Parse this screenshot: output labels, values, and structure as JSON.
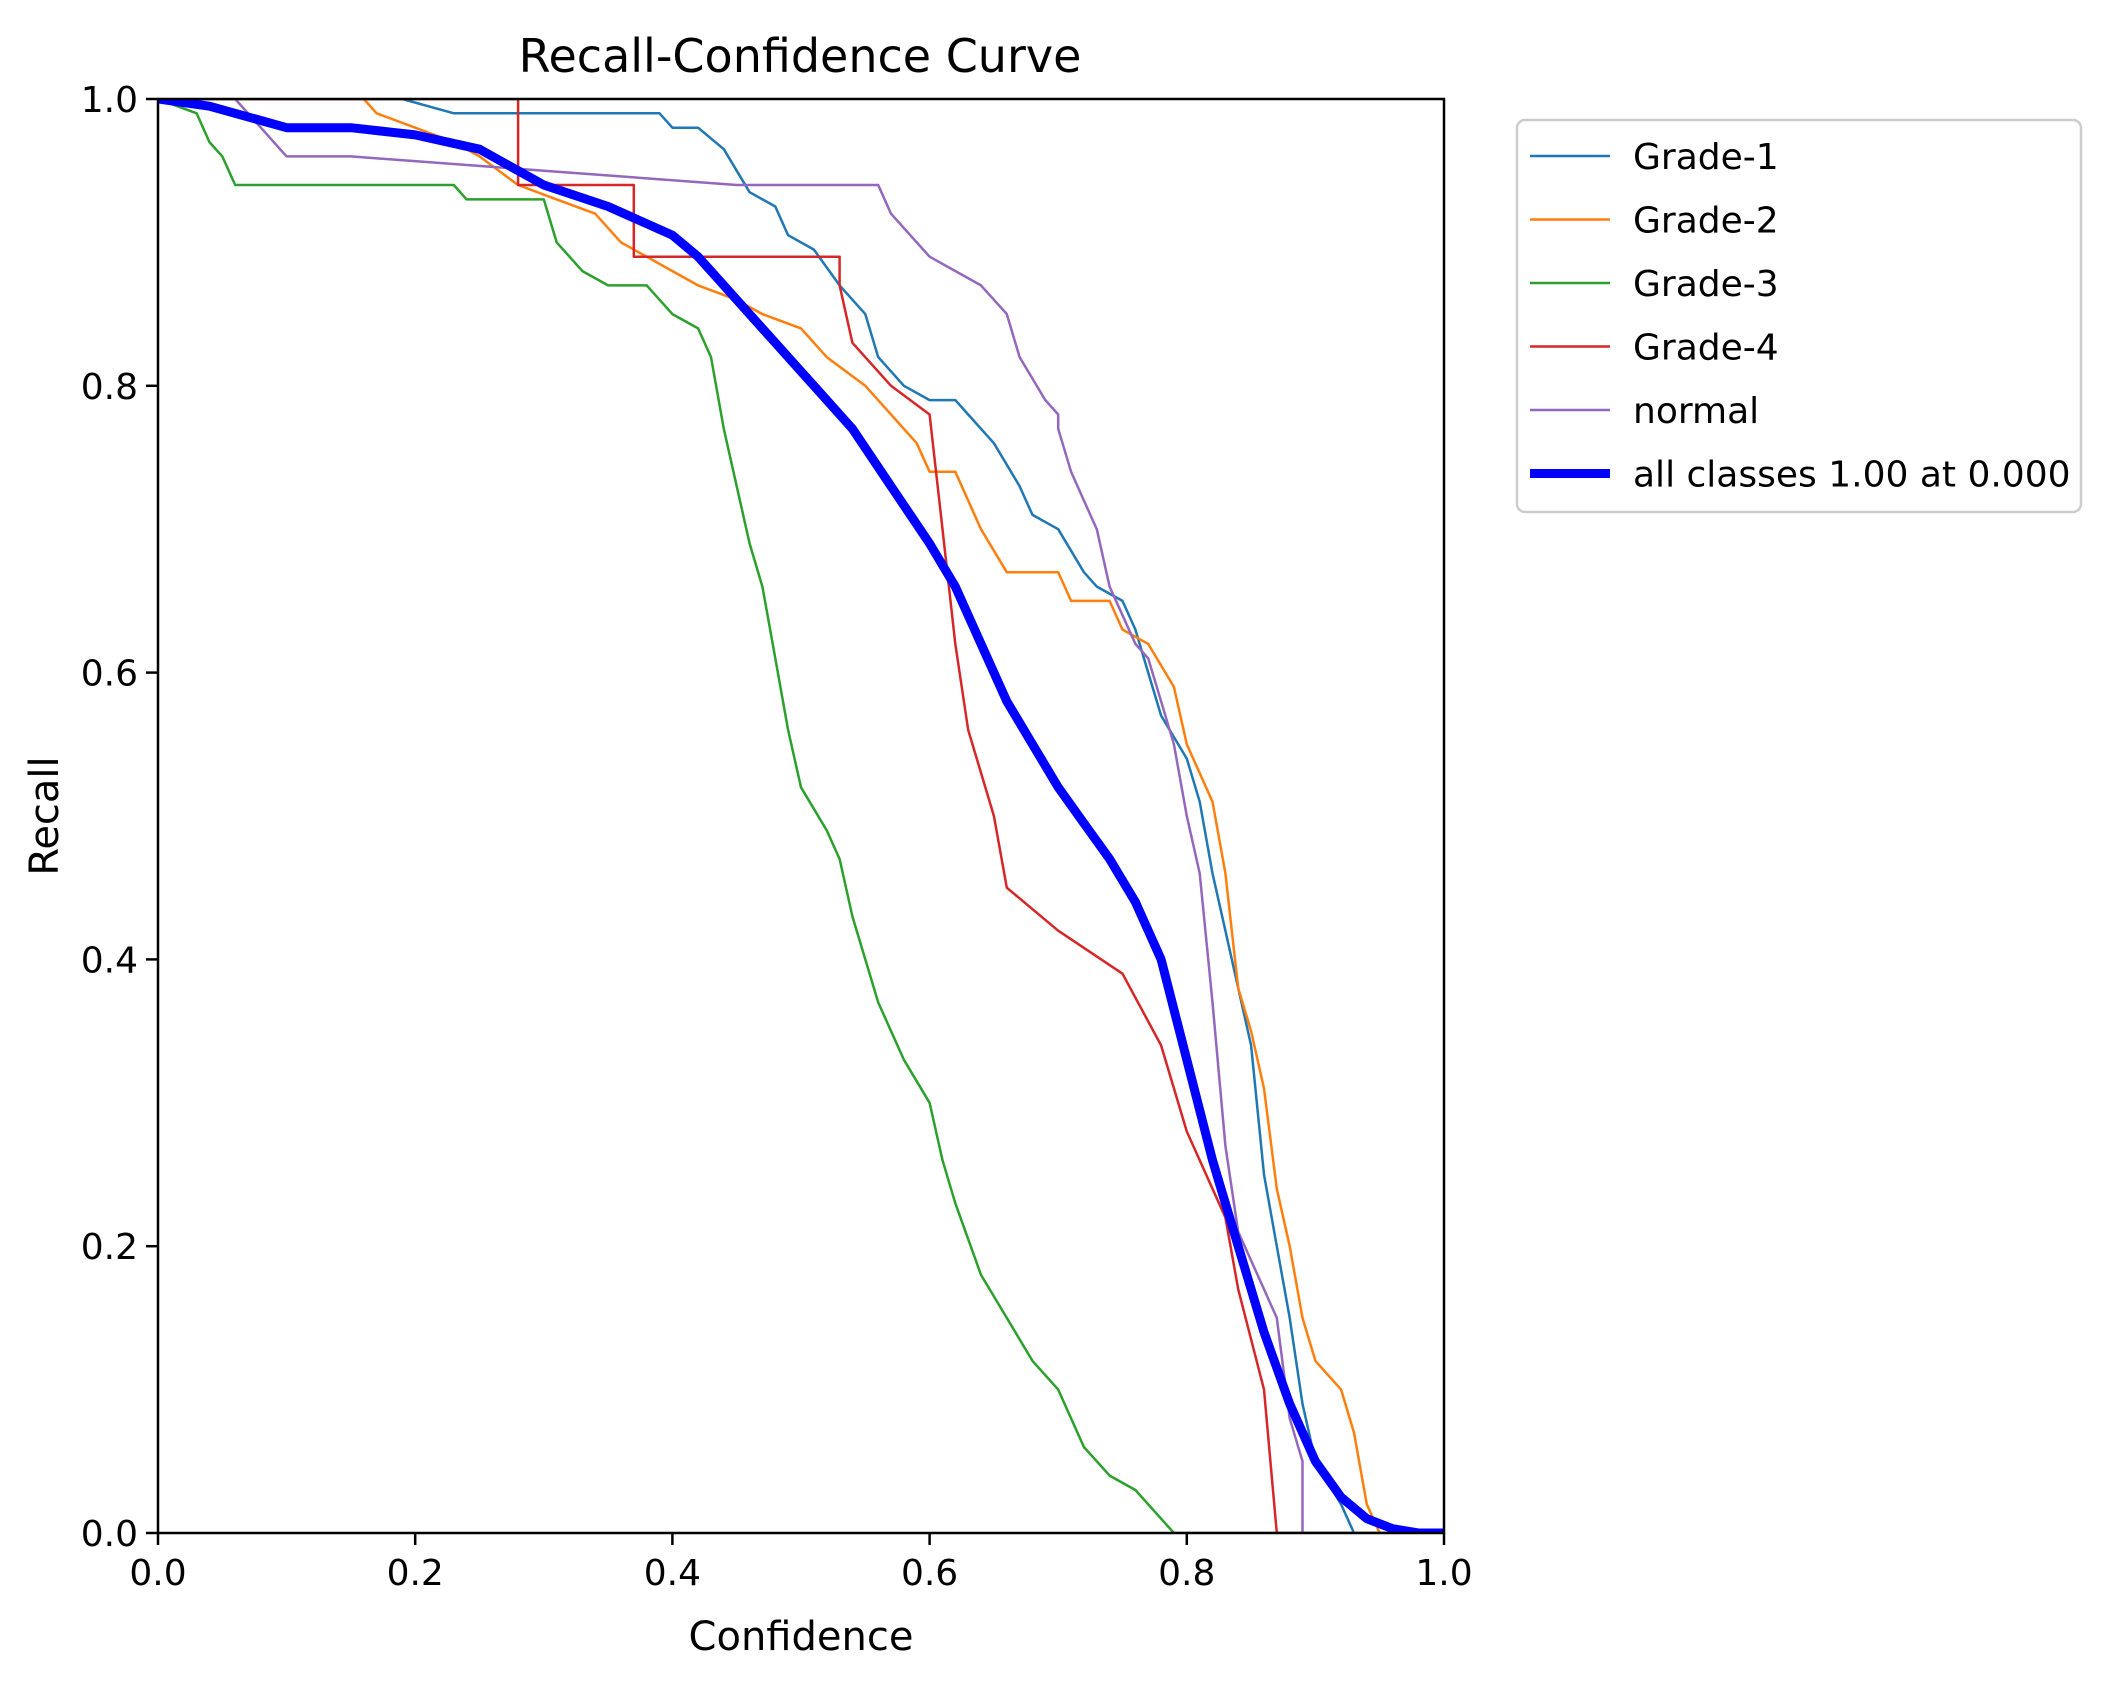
{
  "chart_data": {
    "type": "line",
    "title": "Recall-Confidence Curve",
    "xlabel": "Confidence",
    "ylabel": "Recall",
    "xlim": [
      0.0,
      1.0
    ],
    "ylim": [
      0.0,
      1.0
    ],
    "grid": false,
    "legend_position": "outside-top-right",
    "x_ticks": [
      0.0,
      0.2,
      0.4,
      0.6,
      0.8,
      1.0
    ],
    "y_ticks": [
      0.0,
      0.2,
      0.4,
      0.6,
      0.8,
      1.0
    ],
    "x_tick_labels": [
      "0.0",
      "0.2",
      "0.4",
      "0.6",
      "0.8",
      "1.0"
    ],
    "y_tick_labels": [
      "0.0",
      "0.2",
      "0.4",
      "0.6",
      "0.8",
      "1.0"
    ],
    "series": [
      {
        "name": "Grade-1",
        "color": "#1f77b4",
        "emphasis": false,
        "points": [
          [
            0.0,
            1.0
          ],
          [
            0.19,
            1.0
          ],
          [
            0.23,
            0.99
          ],
          [
            0.33,
            0.99
          ],
          [
            0.39,
            0.99
          ],
          [
            0.4,
            0.98
          ],
          [
            0.42,
            0.98
          ],
          [
            0.44,
            0.965
          ],
          [
            0.46,
            0.935
          ],
          [
            0.48,
            0.925
          ],
          [
            0.49,
            0.905
          ],
          [
            0.51,
            0.895
          ],
          [
            0.53,
            0.87
          ],
          [
            0.55,
            0.85
          ],
          [
            0.56,
            0.82
          ],
          [
            0.58,
            0.8
          ],
          [
            0.6,
            0.79
          ],
          [
            0.62,
            0.79
          ],
          [
            0.63,
            0.78
          ],
          [
            0.65,
            0.76
          ],
          [
            0.67,
            0.73
          ],
          [
            0.68,
            0.71
          ],
          [
            0.7,
            0.7
          ],
          [
            0.72,
            0.67
          ],
          [
            0.73,
            0.66
          ],
          [
            0.75,
            0.65
          ],
          [
            0.76,
            0.63
          ],
          [
            0.77,
            0.6
          ],
          [
            0.78,
            0.57
          ],
          [
            0.8,
            0.54
          ],
          [
            0.81,
            0.51
          ],
          [
            0.82,
            0.46
          ],
          [
            0.83,
            0.42
          ],
          [
            0.84,
            0.38
          ],
          [
            0.85,
            0.34
          ],
          [
            0.86,
            0.25
          ],
          [
            0.87,
            0.2
          ],
          [
            0.88,
            0.15
          ],
          [
            0.89,
            0.09
          ],
          [
            0.9,
            0.05
          ],
          [
            0.92,
            0.02
          ],
          [
            0.93,
            0.0
          ],
          [
            1.0,
            0.0
          ]
        ]
      },
      {
        "name": "Grade-2",
        "color": "#ff7f0e",
        "emphasis": false,
        "points": [
          [
            0.0,
            1.0
          ],
          [
            0.16,
            1.0
          ],
          [
            0.17,
            0.99
          ],
          [
            0.2,
            0.98
          ],
          [
            0.23,
            0.97
          ],
          [
            0.25,
            0.96
          ],
          [
            0.28,
            0.94
          ],
          [
            0.31,
            0.93
          ],
          [
            0.34,
            0.92
          ],
          [
            0.36,
            0.9
          ],
          [
            0.38,
            0.89
          ],
          [
            0.4,
            0.88
          ],
          [
            0.42,
            0.87
          ],
          [
            0.45,
            0.86
          ],
          [
            0.47,
            0.85
          ],
          [
            0.5,
            0.84
          ],
          [
            0.52,
            0.82
          ],
          [
            0.55,
            0.8
          ],
          [
            0.57,
            0.78
          ],
          [
            0.59,
            0.76
          ],
          [
            0.6,
            0.74
          ],
          [
            0.62,
            0.74
          ],
          [
            0.64,
            0.7
          ],
          [
            0.66,
            0.67
          ],
          [
            0.7,
            0.67
          ],
          [
            0.71,
            0.65
          ],
          [
            0.74,
            0.65
          ],
          [
            0.75,
            0.63
          ],
          [
            0.77,
            0.62
          ],
          [
            0.79,
            0.59
          ],
          [
            0.8,
            0.55
          ],
          [
            0.82,
            0.51
          ],
          [
            0.83,
            0.46
          ],
          [
            0.84,
            0.38
          ],
          [
            0.85,
            0.35
          ],
          [
            0.86,
            0.31
          ],
          [
            0.87,
            0.24
          ],
          [
            0.88,
            0.2
          ],
          [
            0.89,
            0.15
          ],
          [
            0.9,
            0.12
          ],
          [
            0.92,
            0.1
          ],
          [
            0.93,
            0.07
          ],
          [
            0.94,
            0.02
          ],
          [
            0.95,
            0.0
          ],
          [
            1.0,
            0.0
          ]
        ]
      },
      {
        "name": "Grade-3",
        "color": "#2ca02c",
        "emphasis": false,
        "points": [
          [
            0.0,
            1.0
          ],
          [
            0.03,
            0.99
          ],
          [
            0.04,
            0.97
          ],
          [
            0.05,
            0.96
          ],
          [
            0.06,
            0.94
          ],
          [
            0.1,
            0.94
          ],
          [
            0.23,
            0.94
          ],
          [
            0.24,
            0.93
          ],
          [
            0.3,
            0.93
          ],
          [
            0.31,
            0.9
          ],
          [
            0.33,
            0.88
          ],
          [
            0.35,
            0.87
          ],
          [
            0.38,
            0.87
          ],
          [
            0.4,
            0.85
          ],
          [
            0.42,
            0.84
          ],
          [
            0.43,
            0.82
          ],
          [
            0.44,
            0.77
          ],
          [
            0.45,
            0.73
          ],
          [
            0.46,
            0.69
          ],
          [
            0.47,
            0.66
          ],
          [
            0.48,
            0.61
          ],
          [
            0.49,
            0.56
          ],
          [
            0.5,
            0.52
          ],
          [
            0.52,
            0.49
          ],
          [
            0.53,
            0.47
          ],
          [
            0.54,
            0.43
          ],
          [
            0.55,
            0.4
          ],
          [
            0.56,
            0.37
          ],
          [
            0.58,
            0.33
          ],
          [
            0.6,
            0.3
          ],
          [
            0.61,
            0.26
          ],
          [
            0.62,
            0.23
          ],
          [
            0.64,
            0.18
          ],
          [
            0.66,
            0.15
          ],
          [
            0.68,
            0.12
          ],
          [
            0.7,
            0.1
          ],
          [
            0.72,
            0.06
          ],
          [
            0.74,
            0.04
          ],
          [
            0.76,
            0.03
          ],
          [
            0.78,
            0.01
          ],
          [
            0.79,
            0.0
          ],
          [
            1.0,
            0.0
          ]
        ]
      },
      {
        "name": "Grade-4",
        "color": "#d62728",
        "emphasis": false,
        "points": [
          [
            0.0,
            1.0
          ],
          [
            0.28,
            1.0
          ],
          [
            0.28,
            0.94
          ],
          [
            0.37,
            0.94
          ],
          [
            0.37,
            0.89
          ],
          [
            0.53,
            0.89
          ],
          [
            0.53,
            0.87
          ],
          [
            0.54,
            0.83
          ],
          [
            0.57,
            0.8
          ],
          [
            0.6,
            0.78
          ],
          [
            0.61,
            0.7
          ],
          [
            0.62,
            0.62
          ],
          [
            0.63,
            0.56
          ],
          [
            0.65,
            0.5
          ],
          [
            0.66,
            0.45
          ],
          [
            0.7,
            0.42
          ],
          [
            0.75,
            0.39
          ],
          [
            0.78,
            0.34
          ],
          [
            0.8,
            0.28
          ],
          [
            0.83,
            0.22
          ],
          [
            0.84,
            0.17
          ],
          [
            0.86,
            0.1
          ],
          [
            0.87,
            0.0
          ],
          [
            1.0,
            0.0
          ]
        ]
      },
      {
        "name": "normal",
        "color": "#9467bd",
        "emphasis": false,
        "points": [
          [
            0.0,
            1.0
          ],
          [
            0.06,
            1.0
          ],
          [
            0.08,
            0.98
          ],
          [
            0.1,
            0.96
          ],
          [
            0.15,
            0.96
          ],
          [
            0.3,
            0.95
          ],
          [
            0.45,
            0.94
          ],
          [
            0.56,
            0.94
          ],
          [
            0.57,
            0.92
          ],
          [
            0.6,
            0.89
          ],
          [
            0.64,
            0.87
          ],
          [
            0.66,
            0.85
          ],
          [
            0.67,
            0.82
          ],
          [
            0.69,
            0.79
          ],
          [
            0.7,
            0.78
          ],
          [
            0.7,
            0.77
          ],
          [
            0.71,
            0.74
          ],
          [
            0.72,
            0.72
          ],
          [
            0.73,
            0.7
          ],
          [
            0.74,
            0.66
          ],
          [
            0.75,
            0.64
          ],
          [
            0.76,
            0.62
          ],
          [
            0.77,
            0.61
          ],
          [
            0.78,
            0.58
          ],
          [
            0.79,
            0.55
          ],
          [
            0.8,
            0.5
          ],
          [
            0.81,
            0.46
          ],
          [
            0.82,
            0.37
          ],
          [
            0.83,
            0.27
          ],
          [
            0.84,
            0.21
          ],
          [
            0.85,
            0.19
          ],
          [
            0.86,
            0.17
          ],
          [
            0.87,
            0.15
          ],
          [
            0.88,
            0.08
          ],
          [
            0.89,
            0.05
          ],
          [
            0.89,
            0.0
          ],
          [
            1.0,
            0.0
          ]
        ]
      },
      {
        "name": "all classes 1.00 at 0.000",
        "color": "#0000ff",
        "emphasis": true,
        "points": [
          [
            0.0,
            1.0
          ],
          [
            0.04,
            0.995
          ],
          [
            0.08,
            0.985
          ],
          [
            0.1,
            0.98
          ],
          [
            0.15,
            0.98
          ],
          [
            0.2,
            0.975
          ],
          [
            0.25,
            0.965
          ],
          [
            0.3,
            0.94
          ],
          [
            0.35,
            0.925
          ],
          [
            0.4,
            0.905
          ],
          [
            0.42,
            0.89
          ],
          [
            0.45,
            0.86
          ],
          [
            0.48,
            0.83
          ],
          [
            0.51,
            0.8
          ],
          [
            0.54,
            0.77
          ],
          [
            0.57,
            0.73
          ],
          [
            0.6,
            0.69
          ],
          [
            0.62,
            0.66
          ],
          [
            0.64,
            0.62
          ],
          [
            0.66,
            0.58
          ],
          [
            0.68,
            0.55
          ],
          [
            0.7,
            0.52
          ],
          [
            0.72,
            0.495
          ],
          [
            0.74,
            0.47
          ],
          [
            0.76,
            0.44
          ],
          [
            0.78,
            0.4
          ],
          [
            0.8,
            0.33
          ],
          [
            0.82,
            0.26
          ],
          [
            0.84,
            0.2
          ],
          [
            0.86,
            0.14
          ],
          [
            0.88,
            0.09
          ],
          [
            0.9,
            0.05
          ],
          [
            0.92,
            0.025
          ],
          [
            0.94,
            0.01
          ],
          [
            0.96,
            0.003
          ],
          [
            0.98,
            0.0
          ],
          [
            1.0,
            0.0
          ]
        ]
      }
    ]
  }
}
